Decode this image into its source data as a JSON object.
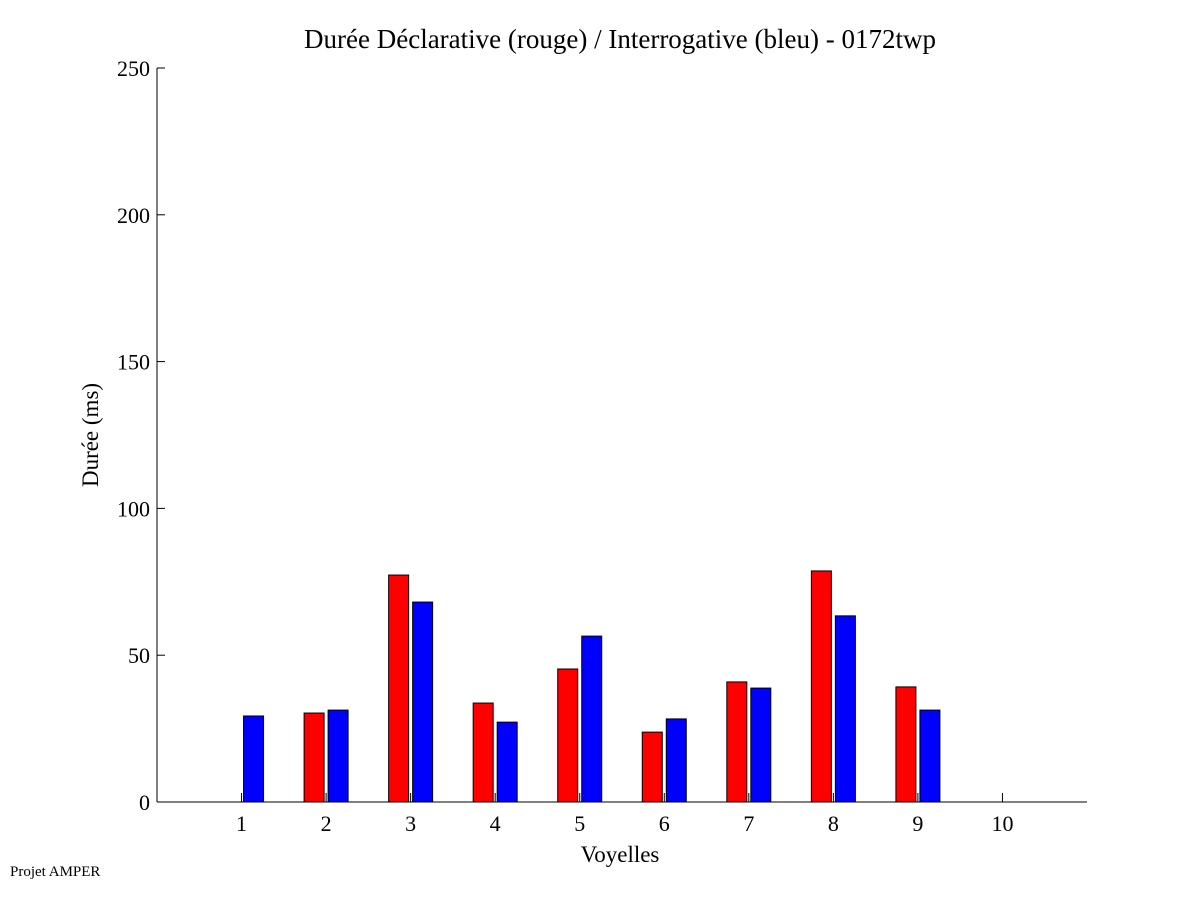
{
  "chart_data": {
    "type": "bar",
    "title": "Durée Déclarative (rouge) / Interrogative (bleu) - 0172twp",
    "xlabel": "Voyelles",
    "ylabel": "Durée (ms)",
    "categories": [
      "1",
      "2",
      "3",
      "4",
      "5",
      "6",
      "7",
      "8",
      "9",
      "10"
    ],
    "xlim": [
      0,
      11
    ],
    "ylim": [
      0,
      250
    ],
    "yticks": [
      "0",
      "50",
      "100",
      "150",
      "200",
      "250"
    ],
    "grid": false,
    "series": [
      {
        "name": "Déclarative",
        "color": "#ff0000",
        "values": [
          null,
          30.3,
          77.3,
          33.7,
          45.3,
          23.8,
          40.9,
          78.7,
          39.2,
          null
        ]
      },
      {
        "name": "Interrogative",
        "color": "#0000ff",
        "values": [
          29.3,
          31.3,
          68.1,
          27.2,
          56.5,
          28.3,
          38.8,
          63.4,
          31.3,
          null
        ]
      }
    ]
  },
  "footer": "Projet AMPER"
}
